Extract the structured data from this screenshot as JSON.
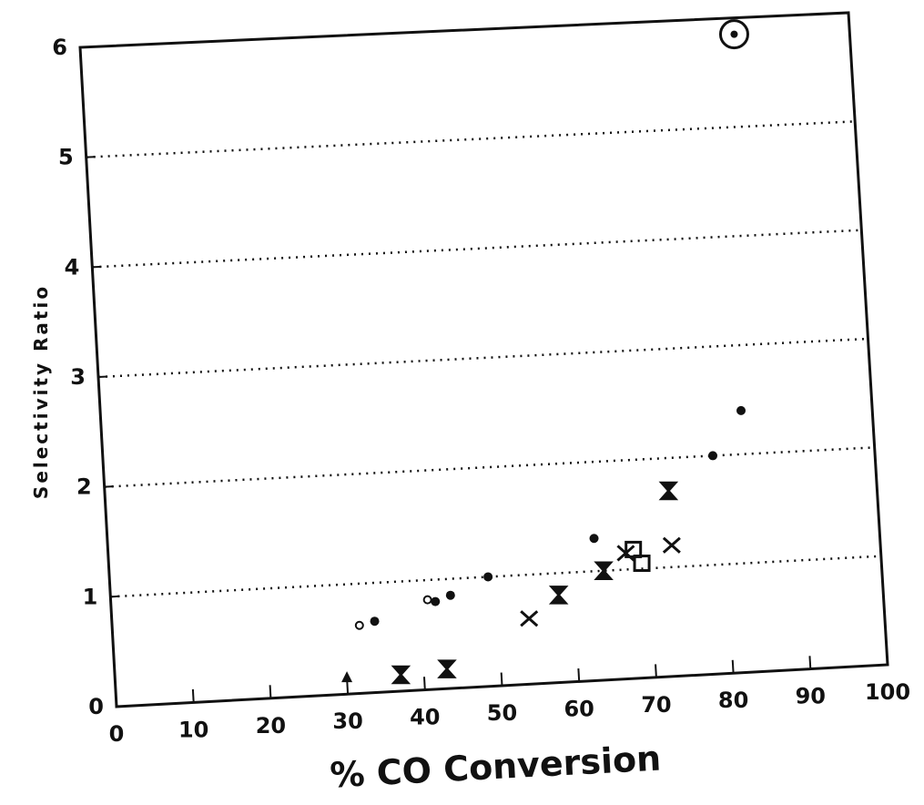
{
  "chart_data": {
    "type": "scatter",
    "title": "",
    "xlabel": "% CO Conversion",
    "ylabel": "Selectivity Ratio",
    "xlim": [
      0,
      100
    ],
    "ylim": [
      0,
      6
    ],
    "x_ticks": [
      "0",
      "10",
      "20",
      "30",
      "40",
      "50",
      "60",
      "70",
      "80",
      "90",
      "100"
    ],
    "y_ticks": [
      "0",
      "1",
      "2",
      "3",
      "4",
      "5",
      "6"
    ],
    "grid": "horizontal dotted at 1, 2, 3, 4, 5",
    "legend": "none",
    "series": [
      {
        "marker": "dot",
        "points": [
          [
            34,
            0.65
          ],
          [
            42,
            0.8
          ],
          [
            44,
            0.85
          ],
          [
            49,
            1.0
          ],
          [
            63,
            1.3
          ],
          [
            79,
            2.0
          ],
          [
            83,
            2.4
          ]
        ]
      },
      {
        "marker": "small-circle",
        "points": [
          [
            32,
            0.62
          ],
          [
            41,
            0.82
          ]
        ]
      },
      {
        "marker": "x",
        "points": [
          [
            54,
            0.6
          ],
          [
            67,
            1.15
          ],
          [
            73,
            1.2
          ]
        ]
      },
      {
        "marker": "hourglass",
        "points": [
          [
            37,
            0.15
          ],
          [
            43,
            0.18
          ],
          [
            58,
            0.8
          ],
          [
            64,
            1.0
          ],
          [
            73,
            1.7
          ]
        ]
      },
      {
        "marker": "square",
        "points": [
          [
            68,
            1.18
          ],
          [
            69,
            1.05
          ]
        ]
      },
      {
        "marker": "triangle",
        "points": [
          [
            30,
            0.15
          ]
        ]
      },
      {
        "marker": "circled-dot",
        "points": [
          [
            85,
            5.85
          ]
        ]
      }
    ]
  }
}
